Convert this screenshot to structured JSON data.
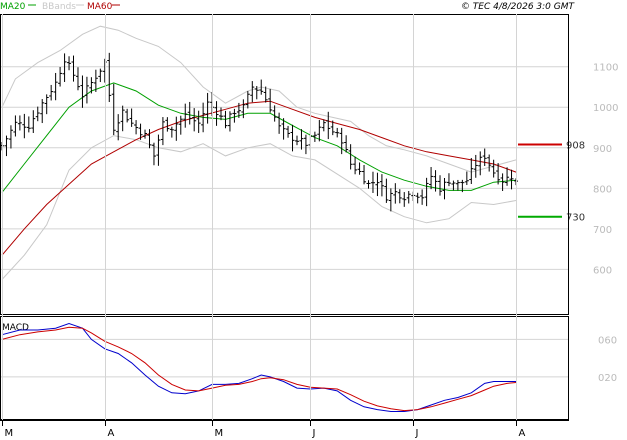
{
  "header": {
    "ma20_label": "MA20",
    "bbands_label": "BBands",
    "ma60_label": "MA60",
    "credit": "© TEC 4/8/2026 3:0 GMT"
  },
  "colors": {
    "background": "#ffffff",
    "grid": "#d4d4d4",
    "axis_text": "#bbbbbb",
    "price_bars": "#000000",
    "ma20": "#00a000",
    "ma60": "#b00000",
    "bbands": "#c8c8c8",
    "macd": "#0000cc",
    "signal": "#cc0000",
    "resistance": "#cc0000",
    "support": "#00aa00"
  },
  "chart_data": [
    {
      "type": "ohlc",
      "ylim": [
        490,
        1230
      ],
      "y_ticks": [
        600,
        700,
        800,
        900,
        1000,
        1100
      ],
      "y_tick_labels": [
        "600",
        "700",
        "800",
        "900",
        "1000",
        "1100"
      ],
      "x_ticks": [
        "M",
        "A",
        "M",
        "J",
        "J",
        "A"
      ],
      "x_tick_positions": [
        0,
        23,
        47,
        69,
        92,
        115
      ],
      "n_bars": 116,
      "anchors_close": [
        [
          0,
          905
        ],
        [
          3,
          960
        ],
        [
          6,
          955
        ],
        [
          9,
          1010
        ],
        [
          12,
          1060
        ],
        [
          14,
          1120
        ],
        [
          16,
          1080
        ],
        [
          18,
          1030
        ],
        [
          20,
          1060
        ],
        [
          23,
          1110
        ],
        [
          25,
          950
        ],
        [
          27,
          990
        ],
        [
          29,
          960
        ],
        [
          32,
          930
        ],
        [
          34,
          880
        ],
        [
          36,
          960
        ],
        [
          38,
          950
        ],
        [
          41,
          980
        ],
        [
          44,
          960
        ],
        [
          46,
          1010
        ],
        [
          48,
          990
        ],
        [
          50,
          960
        ],
        [
          52,
          990
        ],
        [
          54,
          1000
        ],
        [
          56,
          1050
        ],
        [
          58,
          1040
        ],
        [
          60,
          1000
        ],
        [
          62,
          950
        ],
        [
          64,
          930
        ],
        [
          66,
          920
        ],
        [
          68,
          910
        ],
        [
          70,
          930
        ],
        [
          72,
          960
        ],
        [
          74,
          940
        ],
        [
          76,
          920
        ],
        [
          78,
          860
        ],
        [
          80,
          840
        ],
        [
          82,
          810
        ],
        [
          84,
          820
        ],
        [
          86,
          780
        ],
        [
          88,
          790
        ],
        [
          90,
          780
        ],
        [
          92,
          790
        ],
        [
          94,
          780
        ],
        [
          96,
          830
        ],
        [
          98,
          800
        ],
        [
          100,
          820
        ],
        [
          102,
          810
        ],
        [
          104,
          820
        ],
        [
          106,
          860
        ],
        [
          108,
          880
        ],
        [
          110,
          840
        ],
        [
          112,
          820
        ],
        [
          114,
          830
        ],
        [
          115,
          815
        ]
      ],
      "ma20": [
        [
          0,
          790
        ],
        [
          5,
          860
        ],
        [
          10,
          930
        ],
        [
          15,
          1000
        ],
        [
          20,
          1040
        ],
        [
          25,
          1060
        ],
        [
          30,
          1040
        ],
        [
          35,
          1005
        ],
        [
          40,
          985
        ],
        [
          45,
          975
        ],
        [
          50,
          970
        ],
        [
          55,
          985
        ],
        [
          60,
          985
        ],
        [
          65,
          955
        ],
        [
          70,
          925
        ],
        [
          75,
          905
        ],
        [
          80,
          870
        ],
        [
          85,
          840
        ],
        [
          90,
          820
        ],
        [
          95,
          805
        ],
        [
          100,
          795
        ],
        [
          105,
          795
        ],
        [
          110,
          815
        ],
        [
          115,
          820
        ]
      ],
      "ma60": [
        [
          0,
          635
        ],
        [
          5,
          700
        ],
        [
          10,
          760
        ],
        [
          15,
          810
        ],
        [
          20,
          860
        ],
        [
          25,
          890
        ],
        [
          30,
          920
        ],
        [
          35,
          945
        ],
        [
          40,
          965
        ],
        [
          45,
          980
        ],
        [
          50,
          995
        ],
        [
          55,
          1010
        ],
        [
          60,
          1015
        ],
        [
          65,
          995
        ],
        [
          70,
          975
        ],
        [
          75,
          960
        ],
        [
          80,
          945
        ],
        [
          85,
          925
        ],
        [
          90,
          905
        ],
        [
          95,
          890
        ],
        [
          100,
          880
        ],
        [
          105,
          870
        ],
        [
          110,
          860
        ],
        [
          115,
          840
        ]
      ],
      "bb_upper": [
        [
          0,
          1000
        ],
        [
          3,
          1070
        ],
        [
          8,
          1110
        ],
        [
          13,
          1140
        ],
        [
          18,
          1180
        ],
        [
          22,
          1200
        ],
        [
          26,
          1190
        ],
        [
          30,
          1170
        ],
        [
          35,
          1150
        ],
        [
          40,
          1110
        ],
        [
          45,
          1050
        ],
        [
          50,
          1010
        ],
        [
          55,
          1040
        ],
        [
          58,
          1050
        ],
        [
          62,
          1040
        ],
        [
          66,
          1000
        ],
        [
          70,
          985
        ],
        [
          74,
          975
        ],
        [
          78,
          965
        ],
        [
          82,
          930
        ],
        [
          86,
          905
        ],
        [
          90,
          895
        ],
        [
          95,
          880
        ],
        [
          100,
          860
        ],
        [
          105,
          840
        ],
        [
          110,
          855
        ],
        [
          115,
          870
        ]
      ],
      "bb_lower": [
        [
          0,
          575
        ],
        [
          5,
          635
        ],
        [
          10,
          710
        ],
        [
          15,
          845
        ],
        [
          20,
          900
        ],
        [
          25,
          930
        ],
        [
          30,
          920
        ],
        [
          35,
          900
        ],
        [
          40,
          890
        ],
        [
          45,
          910
        ],
        [
          50,
          880
        ],
        [
          55,
          900
        ],
        [
          60,
          910
        ],
        [
          65,
          880
        ],
        [
          70,
          870
        ],
        [
          75,
          835
        ],
        [
          80,
          800
        ],
        [
          85,
          755
        ],
        [
          90,
          730
        ],
        [
          95,
          715
        ],
        [
          100,
          725
        ],
        [
          105,
          765
        ],
        [
          110,
          760
        ],
        [
          115,
          770
        ]
      ],
      "levels": [
        {
          "label": "908",
          "value": 908,
          "color": "#cc0000"
        },
        {
          "label": "730",
          "value": 730,
          "color": "#00aa00"
        }
      ]
    },
    {
      "type": "line",
      "title": "MACD",
      "ylim": [
        -25,
        85
      ],
      "y_ticks": [
        20,
        60
      ],
      "y_tick_labels": [
        "020",
        "060"
      ],
      "series": [
        {
          "color": "#0000cc",
          "points": [
            [
              0,
              65
            ],
            [
              4,
              70
            ],
            [
              8,
              70
            ],
            [
              12,
              72
            ],
            [
              15,
              77
            ],
            [
              18,
              72
            ],
            [
              20,
              60
            ],
            [
              23,
              50
            ],
            [
              26,
              45
            ],
            [
              29,
              35
            ],
            [
              32,
              22
            ],
            [
              35,
              10
            ],
            [
              38,
              3
            ],
            [
              41,
              2
            ],
            [
              44,
              5
            ],
            [
              47,
              12
            ],
            [
              50,
              12
            ],
            [
              53,
              13
            ],
            [
              56,
              18
            ],
            [
              58,
              22
            ],
            [
              60,
              20
            ],
            [
              63,
              15
            ],
            [
              66,
              8
            ],
            [
              69,
              7
            ],
            [
              72,
              8
            ],
            [
              75,
              5
            ],
            [
              78,
              -5
            ],
            [
              81,
              -12
            ],
            [
              84,
              -15
            ],
            [
              87,
              -17
            ],
            [
              90,
              -17
            ],
            [
              93,
              -15
            ],
            [
              96,
              -10
            ],
            [
              99,
              -5
            ],
            [
              102,
              -2
            ],
            [
              105,
              3
            ],
            [
              108,
              13
            ],
            [
              110,
              15
            ],
            [
              113,
              15
            ],
            [
              115,
              15
            ]
          ]
        },
        {
          "color": "#cc0000",
          "points": [
            [
              0,
              60
            ],
            [
              4,
              65
            ],
            [
              8,
              68
            ],
            [
              12,
              70
            ],
            [
              15,
              73
            ],
            [
              18,
              72
            ],
            [
              20,
              67
            ],
            [
              23,
              58
            ],
            [
              26,
              52
            ],
            [
              29,
              45
            ],
            [
              32,
              35
            ],
            [
              35,
              22
            ],
            [
              38,
              12
            ],
            [
              41,
              6
            ],
            [
              44,
              5
            ],
            [
              47,
              8
            ],
            [
              50,
              11
            ],
            [
              53,
              12
            ],
            [
              56,
              15
            ],
            [
              58,
              18
            ],
            [
              60,
              19
            ],
            [
              63,
              17
            ],
            [
              66,
              12
            ],
            [
              69,
              9
            ],
            [
              72,
              8
            ],
            [
              75,
              7
            ],
            [
              78,
              1
            ],
            [
              81,
              -6
            ],
            [
              84,
              -11
            ],
            [
              87,
              -14
            ],
            [
              90,
              -16
            ],
            [
              93,
              -15
            ],
            [
              96,
              -12
            ],
            [
              99,
              -8
            ],
            [
              102,
              -4
            ],
            [
              105,
              0
            ],
            [
              108,
              6
            ],
            [
              110,
              10
            ],
            [
              113,
              13
            ],
            [
              115,
              14
            ]
          ]
        }
      ]
    }
  ]
}
